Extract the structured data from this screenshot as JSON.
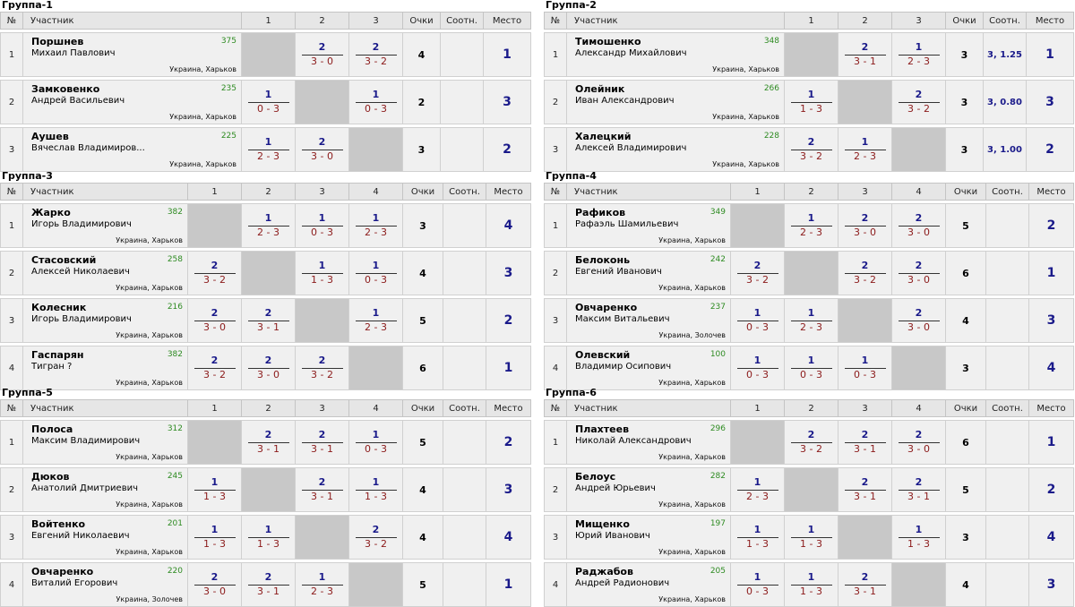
{
  "headers": {
    "no": "№",
    "participant": "Участник",
    "points": "Очки",
    "ratio": "Соотн.",
    "place": "Место"
  },
  "colors": {
    "score_points": "#1a1a8a",
    "score_sets": "#8b1a1a",
    "rating": "#2e8b22",
    "self_cell": "#c8c8c8",
    "row_bg": "#f0f0f0",
    "header_bg": "#e6e6e6"
  },
  "groups": [
    {
      "title": "Группа-1",
      "cols": [
        "1",
        "2",
        "3"
      ],
      "players": [
        {
          "n": "1",
          "last": "Поршнев",
          "first": "Михаил Павлович",
          "rating": "375",
          "loc": "Украина, Харьков",
          "results": [
            null,
            {
              "p": "2",
              "s": "3 - 0"
            },
            {
              "p": "2",
              "s": "3 - 2"
            }
          ],
          "points": "4",
          "ratio": "",
          "place": "1"
        },
        {
          "n": "2",
          "last": "Замковенко",
          "first": "Андрей Васильевич",
          "rating": "235",
          "loc": "Украина, Харьков",
          "results": [
            {
              "p": "1",
              "s": "0 - 3"
            },
            null,
            {
              "p": "1",
              "s": "0 - 3"
            }
          ],
          "points": "2",
          "ratio": "",
          "place": "3"
        },
        {
          "n": "3",
          "last": "Аушев",
          "first": "Вячеслав Владимиров...",
          "rating": "225",
          "loc": "Украина, Харьков",
          "results": [
            {
              "p": "1",
              "s": "2 - 3"
            },
            {
              "p": "2",
              "s": "3 - 0"
            },
            null
          ],
          "points": "3",
          "ratio": "",
          "place": "2"
        }
      ]
    },
    {
      "title": "Группа-2",
      "cols": [
        "1",
        "2",
        "3"
      ],
      "players": [
        {
          "n": "1",
          "last": "Тимошенко",
          "first": "Александр Михайлович",
          "rating": "348",
          "loc": "Украина, Харьков",
          "results": [
            null,
            {
              "p": "2",
              "s": "3 - 1"
            },
            {
              "p": "1",
              "s": "2 - 3"
            }
          ],
          "points": "3",
          "ratio": "3, 1.25",
          "place": "1"
        },
        {
          "n": "2",
          "last": "Олейник",
          "first": "Иван Александрович",
          "rating": "266",
          "loc": "Украина, Харьков",
          "results": [
            {
              "p": "1",
              "s": "1 - 3"
            },
            null,
            {
              "p": "2",
              "s": "3 - 2"
            }
          ],
          "points": "3",
          "ratio": "3, 0.80",
          "place": "3"
        },
        {
          "n": "3",
          "last": "Халецкий",
          "first": "Алексей Владимирович",
          "rating": "228",
          "loc": "Украина, Харьков",
          "results": [
            {
              "p": "2",
              "s": "3 - 2"
            },
            {
              "p": "1",
              "s": "2 - 3"
            },
            null
          ],
          "points": "3",
          "ratio": "3, 1.00",
          "place": "2"
        }
      ]
    },
    {
      "title": "Группа-3",
      "cols": [
        "1",
        "2",
        "3",
        "4"
      ],
      "players": [
        {
          "n": "1",
          "last": "Жарко",
          "first": "Игорь Владимирович",
          "rating": "382",
          "loc": "Украина, Харьков",
          "results": [
            null,
            {
              "p": "1",
              "s": "2 - 3"
            },
            {
              "p": "1",
              "s": "0 - 3"
            },
            {
              "p": "1",
              "s": "2 - 3"
            }
          ],
          "points": "3",
          "ratio": "",
          "place": "4"
        },
        {
          "n": "2",
          "last": "Стасовский",
          "first": "Алексей Николаевич",
          "rating": "258",
          "loc": "Украина, Харьков",
          "results": [
            {
              "p": "2",
              "s": "3 - 2"
            },
            null,
            {
              "p": "1",
              "s": "1 - 3"
            },
            {
              "p": "1",
              "s": "0 - 3"
            }
          ],
          "points": "4",
          "ratio": "",
          "place": "3"
        },
        {
          "n": "3",
          "last": "Колесник",
          "first": "Игорь Владимирович",
          "rating": "216",
          "loc": "Украина, Харьков",
          "results": [
            {
              "p": "2",
              "s": "3 - 0"
            },
            {
              "p": "2",
              "s": "3 - 1"
            },
            null,
            {
              "p": "1",
              "s": "2 - 3"
            }
          ],
          "points": "5",
          "ratio": "",
          "place": "2"
        },
        {
          "n": "4",
          "last": "Гаспарян",
          "first": "Тигран ?",
          "rating": "382",
          "loc": "Украина, Харьков",
          "results": [
            {
              "p": "2",
              "s": "3 - 2"
            },
            {
              "p": "2",
              "s": "3 - 0"
            },
            {
              "p": "2",
              "s": "3 - 2"
            },
            null
          ],
          "points": "6",
          "ratio": "",
          "place": "1"
        }
      ]
    },
    {
      "title": "Группа-4",
      "cols": [
        "1",
        "2",
        "3",
        "4"
      ],
      "players": [
        {
          "n": "1",
          "last": "Рафиков",
          "first": "Рафаэль Шамильевич",
          "rating": "349",
          "loc": "Украина, Харьков",
          "results": [
            null,
            {
              "p": "1",
              "s": "2 - 3"
            },
            {
              "p": "2",
              "s": "3 - 0"
            },
            {
              "p": "2",
              "s": "3 - 0"
            }
          ],
          "points": "5",
          "ratio": "",
          "place": "2"
        },
        {
          "n": "2",
          "last": "Белоконь",
          "first": "Евгений Иванович",
          "rating": "242",
          "loc": "Украина, Харьков",
          "results": [
            {
              "p": "2",
              "s": "3 - 2"
            },
            null,
            {
              "p": "2",
              "s": "3 - 2"
            },
            {
              "p": "2",
              "s": "3 - 0"
            }
          ],
          "points": "6",
          "ratio": "",
          "place": "1"
        },
        {
          "n": "3",
          "last": "Овчаренко",
          "first": "Максим Витальевич",
          "rating": "237",
          "loc": "Украина, Золочев",
          "results": [
            {
              "p": "1",
              "s": "0 - 3"
            },
            {
              "p": "1",
              "s": "2 - 3"
            },
            null,
            {
              "p": "2",
              "s": "3 - 0"
            }
          ],
          "points": "4",
          "ratio": "",
          "place": "3"
        },
        {
          "n": "4",
          "last": "Олевский",
          "first": "Владимир Осипович",
          "rating": "100",
          "loc": "Украина, Харьков",
          "results": [
            {
              "p": "1",
              "s": "0 - 3"
            },
            {
              "p": "1",
              "s": "0 - 3"
            },
            {
              "p": "1",
              "s": "0 - 3"
            },
            null
          ],
          "points": "3",
          "ratio": "",
          "place": "4"
        }
      ]
    },
    {
      "title": "Группа-5",
      "cols": [
        "1",
        "2",
        "3",
        "4"
      ],
      "players": [
        {
          "n": "1",
          "last": "Полоса",
          "first": "Максим Владимирович",
          "rating": "312",
          "loc": "Украина, Харьков",
          "results": [
            null,
            {
              "p": "2",
              "s": "3 - 1"
            },
            {
              "p": "2",
              "s": "3 - 1"
            },
            {
              "p": "1",
              "s": "0 - 3"
            }
          ],
          "points": "5",
          "ratio": "",
          "place": "2"
        },
        {
          "n": "2",
          "last": "Дюков",
          "first": "Анатолий Дмитриевич",
          "rating": "245",
          "loc": "Украина, Харьков",
          "results": [
            {
              "p": "1",
              "s": "1 - 3"
            },
            null,
            {
              "p": "2",
              "s": "3 - 1"
            },
            {
              "p": "1",
              "s": "1 - 3"
            }
          ],
          "points": "4",
          "ratio": "",
          "place": "3"
        },
        {
          "n": "3",
          "last": "Войтенко",
          "first": "Евгений Николаевич",
          "rating": "201",
          "loc": "Украина, Харьков",
          "results": [
            {
              "p": "1",
              "s": "1 - 3"
            },
            {
              "p": "1",
              "s": "1 - 3"
            },
            null,
            {
              "p": "2",
              "s": "3 - 2"
            }
          ],
          "points": "4",
          "ratio": "",
          "place": "4"
        },
        {
          "n": "4",
          "last": "Овчаренко",
          "first": "Виталий Егорович",
          "rating": "220",
          "loc": "Украина, Золочев",
          "results": [
            {
              "p": "2",
              "s": "3 - 0"
            },
            {
              "p": "2",
              "s": "3 - 1"
            },
            {
              "p": "1",
              "s": "2 - 3"
            },
            null
          ],
          "points": "5",
          "ratio": "",
          "place": "1"
        }
      ]
    },
    {
      "title": "Группа-6",
      "cols": [
        "1",
        "2",
        "3",
        "4"
      ],
      "players": [
        {
          "n": "1",
          "last": "Плахтеев",
          "first": "Николай Александрович",
          "rating": "296",
          "loc": "Украина, Харьков",
          "results": [
            null,
            {
              "p": "2",
              "s": "3 - 2"
            },
            {
              "p": "2",
              "s": "3 - 1"
            },
            {
              "p": "2",
              "s": "3 - 0"
            }
          ],
          "points": "6",
          "ratio": "",
          "place": "1"
        },
        {
          "n": "2",
          "last": "Белоус",
          "first": "Андрей Юрьевич",
          "rating": "282",
          "loc": "Украина, Харьков",
          "results": [
            {
              "p": "1",
              "s": "2 - 3"
            },
            null,
            {
              "p": "2",
              "s": "3 - 1"
            },
            {
              "p": "2",
              "s": "3 - 1"
            }
          ],
          "points": "5",
          "ratio": "",
          "place": "2"
        },
        {
          "n": "3",
          "last": "Мищенко",
          "first": "Юрий Иванович",
          "rating": "197",
          "loc": "Украина, Харьков",
          "results": [
            {
              "p": "1",
              "s": "1 - 3"
            },
            {
              "p": "1",
              "s": "1 - 3"
            },
            null,
            {
              "p": "1",
              "s": "1 - 3"
            }
          ],
          "points": "3",
          "ratio": "",
          "place": "4"
        },
        {
          "n": "4",
          "last": "Раджабов",
          "first": "Андрей Радионович",
          "rating": "205",
          "loc": "Украина, Харьков",
          "results": [
            {
              "p": "1",
              "s": "0 - 3"
            },
            {
              "p": "1",
              "s": "1 - 3"
            },
            {
              "p": "2",
              "s": "3 - 1"
            },
            null
          ],
          "points": "4",
          "ratio": "",
          "place": "3"
        }
      ]
    }
  ]
}
